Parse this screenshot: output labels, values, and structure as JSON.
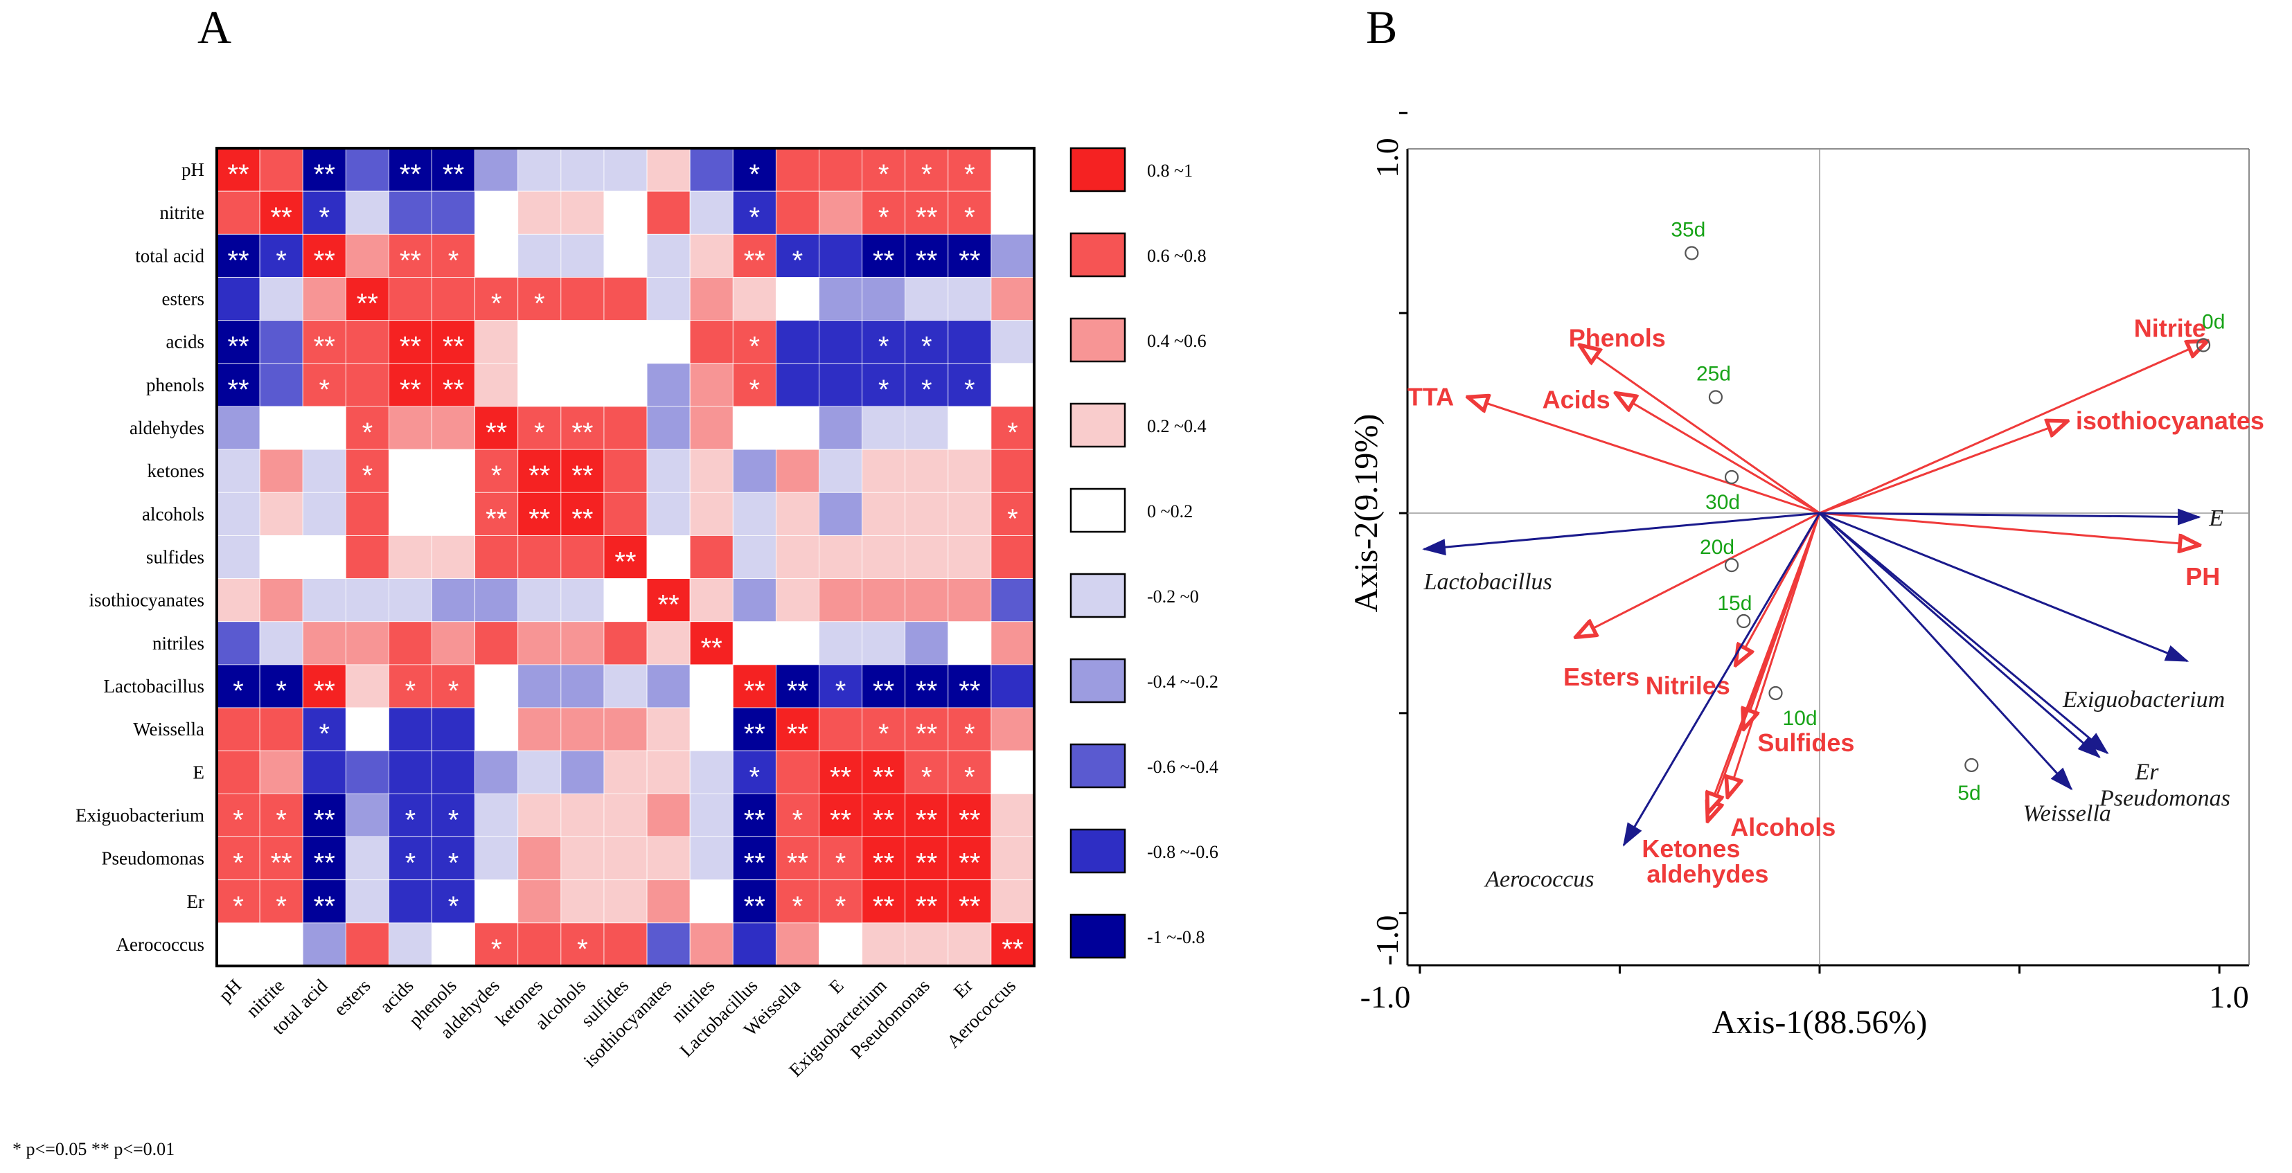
{
  "panels": {
    "a": "A",
    "b": "B"
  },
  "significance_note": "* p<=0.05   ** p<=0.01",
  "chart_data": [
    {
      "type": "heatmap",
      "title": "A",
      "rows": [
        "pH",
        "nitrite",
        "total acid",
        "esters",
        "acids",
        "phenols",
        "aldehydes",
        "ketones",
        "alcohols",
        "sulfides",
        "isothiocyanates",
        "nitriles",
        "Lactobacillus",
        "Weissella",
        "E",
        "Exiguobacterium",
        "Pseudomonas",
        "Er",
        "Aerococcus"
      ],
      "columns": [
        "pH",
        "nitrite",
        "total acid",
        "esters",
        "acids",
        "phenols",
        "aldehydes",
        "ketones",
        "alcohols",
        "sulfides",
        "isothiocyanates",
        "nitriles",
        "Lactobacillus",
        "Weissella",
        "E",
        "Exiguobacterium",
        "Pseudomonas",
        "Er",
        "Aerococcus"
      ],
      "values": [
        [
          0.9,
          0.7,
          -0.9,
          -0.5,
          -0.9,
          -0.9,
          -0.3,
          -0.1,
          -0.1,
          -0.1,
          0.3,
          -0.5,
          -0.9,
          0.7,
          0.7,
          0.7,
          0.7,
          0.7,
          0.1
        ],
        [
          0.7,
          0.9,
          -0.7,
          -0.1,
          -0.5,
          -0.5,
          0.1,
          0.3,
          0.3,
          0.1,
          0.7,
          -0.1,
          -0.7,
          0.7,
          0.5,
          0.7,
          0.7,
          0.7,
          0.1
        ],
        [
          -0.9,
          -0.7,
          0.9,
          0.5,
          0.7,
          0.7,
          0.1,
          -0.1,
          -0.1,
          0.1,
          -0.1,
          0.3,
          0.7,
          -0.7,
          -0.7,
          -0.9,
          -0.9,
          -0.9,
          -0.3
        ],
        [
          -0.7,
          -0.1,
          0.5,
          0.9,
          0.7,
          0.7,
          0.7,
          0.7,
          0.7,
          0.7,
          -0.1,
          0.5,
          0.3,
          0.1,
          -0.3,
          -0.3,
          -0.1,
          -0.1,
          0.5
        ],
        [
          -0.9,
          -0.5,
          0.7,
          0.7,
          0.9,
          0.9,
          0.3,
          0.1,
          0.1,
          0.1,
          0.1,
          0.7,
          0.7,
          -0.7,
          -0.7,
          -0.7,
          -0.7,
          -0.7,
          -0.1
        ],
        [
          -0.9,
          -0.5,
          0.7,
          0.7,
          0.9,
          0.9,
          0.3,
          0.1,
          0.1,
          0.1,
          -0.3,
          0.5,
          0.7,
          -0.7,
          -0.7,
          -0.7,
          -0.7,
          -0.7,
          0.1
        ],
        [
          -0.3,
          0.1,
          0.1,
          0.7,
          0.5,
          0.5,
          0.9,
          0.7,
          0.7,
          0.7,
          -0.3,
          0.5,
          0.1,
          0.1,
          -0.3,
          -0.1,
          -0.1,
          0.1,
          0.7
        ],
        [
          -0.1,
          0.5,
          -0.1,
          0.7,
          0.1,
          0.1,
          0.7,
          0.9,
          0.9,
          0.7,
          -0.1,
          0.3,
          -0.3,
          0.5,
          -0.1,
          0.3,
          0.3,
          0.3,
          0.7
        ],
        [
          -0.1,
          0.3,
          -0.1,
          0.7,
          0.1,
          0.1,
          0.7,
          0.9,
          0.9,
          0.7,
          -0.1,
          0.3,
          -0.1,
          0.3,
          -0.3,
          0.3,
          0.3,
          0.3,
          0.7
        ],
        [
          -0.1,
          0.1,
          0.1,
          0.7,
          0.3,
          0.3,
          0.7,
          0.7,
          0.7,
          0.9,
          0.1,
          0.7,
          -0.1,
          0.3,
          0.3,
          0.3,
          0.3,
          0.3,
          0.7
        ],
        [
          0.3,
          0.5,
          -0.1,
          -0.1,
          -0.1,
          -0.3,
          -0.3,
          -0.1,
          -0.1,
          0.1,
          0.9,
          0.3,
          -0.3,
          0.3,
          0.5,
          0.5,
          0.5,
          0.5,
          -0.5
        ],
        [
          -0.5,
          -0.1,
          0.5,
          0.5,
          0.7,
          0.5,
          0.7,
          0.5,
          0.5,
          0.7,
          0.3,
          0.9,
          0.1,
          0.1,
          -0.1,
          -0.1,
          -0.3,
          0.1,
          0.5
        ],
        [
          -0.9,
          -0.9,
          0.9,
          0.3,
          0.7,
          0.7,
          0.1,
          -0.3,
          -0.3,
          -0.1,
          -0.3,
          0.1,
          0.9,
          -0.9,
          -0.7,
          -0.9,
          -0.9,
          -0.9,
          -0.7
        ],
        [
          0.7,
          0.7,
          -0.7,
          0.1,
          -0.7,
          -0.7,
          0.1,
          0.5,
          0.5,
          0.5,
          0.3,
          0.1,
          -0.9,
          0.9,
          0.7,
          0.7,
          0.7,
          0.7,
          0.5
        ],
        [
          0.7,
          0.5,
          -0.7,
          -0.5,
          -0.7,
          -0.7,
          -0.3,
          -0.1,
          -0.3,
          0.3,
          0.3,
          -0.1,
          -0.7,
          0.7,
          0.9,
          0.9,
          0.7,
          0.7,
          0.1
        ],
        [
          0.7,
          0.7,
          -0.9,
          -0.3,
          -0.7,
          -0.7,
          -0.1,
          0.3,
          0.3,
          0.3,
          0.5,
          -0.1,
          -0.9,
          0.7,
          0.9,
          0.9,
          0.9,
          0.9,
          0.3
        ],
        [
          0.7,
          0.7,
          -0.9,
          -0.1,
          -0.7,
          -0.7,
          -0.1,
          0.5,
          0.3,
          0.3,
          0.3,
          -0.1,
          -0.9,
          0.7,
          0.7,
          0.9,
          0.9,
          0.9,
          0.3
        ],
        [
          0.7,
          0.7,
          -0.9,
          -0.1,
          -0.7,
          -0.7,
          0.1,
          0.5,
          0.3,
          0.3,
          0.5,
          0.1,
          -0.9,
          0.7,
          0.7,
          0.9,
          0.9,
          0.9,
          0.3
        ],
        [
          0.1,
          0.1,
          -0.3,
          0.7,
          -0.1,
          0.1,
          0.7,
          0.7,
          0.7,
          0.7,
          -0.5,
          0.5,
          -0.7,
          0.5,
          0.1,
          0.3,
          0.3,
          0.3,
          0.9
        ]
      ],
      "significance": [
        [
          "**",
          "",
          "**",
          "",
          "**",
          "**",
          "",
          "",
          "",
          "",
          "",
          "",
          "*",
          "",
          "",
          "*",
          "*",
          "*",
          ""
        ],
        [
          "",
          "**",
          "*",
          "",
          "",
          "",
          "",
          "",
          "",
          "",
          "",
          "",
          "*",
          "",
          "",
          "*",
          "**",
          "*",
          ""
        ],
        [
          "**",
          "*",
          "**",
          "",
          "**",
          "*",
          "",
          "",
          "",
          "",
          "",
          "",
          "**",
          "*",
          "",
          "**",
          "**",
          "**",
          ""
        ],
        [
          "",
          "",
          "",
          "**",
          "",
          "",
          "*",
          "*",
          "",
          "",
          "",
          "",
          "",
          "",
          "",
          "",
          "",
          "",
          ""
        ],
        [
          "**",
          "",
          "**",
          "",
          "**",
          "**",
          "",
          "",
          "",
          "",
          "",
          "",
          "*",
          "",
          "",
          "*",
          "*",
          "",
          ""
        ],
        [
          "**",
          "",
          "*",
          "",
          "**",
          "**",
          "",
          "",
          "",
          "",
          "",
          "",
          "*",
          "",
          "",
          "*",
          "*",
          "*",
          ""
        ],
        [
          "",
          "",
          "",
          "*",
          "",
          "",
          "**",
          "*",
          "**",
          "",
          "",
          "",
          "",
          "",
          "",
          "",
          "",
          "",
          "*"
        ],
        [
          "",
          "",
          "",
          "*",
          "",
          "",
          "*",
          "**",
          "**",
          "",
          "",
          "",
          "",
          "",
          "",
          "",
          "",
          "",
          ""
        ],
        [
          "",
          "",
          "",
          "",
          "",
          "",
          "**",
          "**",
          "**",
          "",
          "",
          "",
          "",
          "",
          "",
          "",
          "",
          "",
          "*"
        ],
        [
          "",
          "",
          "",
          "",
          "",
          "",
          "",
          "",
          "",
          "**",
          "",
          "",
          "",
          "",
          "",
          "",
          "",
          "",
          ""
        ],
        [
          "",
          "",
          "",
          "",
          "",
          "",
          "",
          "",
          "",
          "",
          "**",
          "",
          "",
          "",
          "",
          "",
          "",
          "",
          ""
        ],
        [
          "",
          "",
          "",
          "",
          "",
          "",
          "",
          "",
          "",
          "",
          "",
          "**",
          "",
          "",
          "",
          "",
          "",
          "",
          ""
        ],
        [
          "*",
          "*",
          "**",
          "",
          "*",
          "*",
          "",
          "",
          "",
          "",
          "",
          "",
          "**",
          "**",
          "*",
          "**",
          "**",
          "**",
          ""
        ],
        [
          "",
          "",
          "*",
          "",
          "",
          "",
          "",
          "",
          "",
          "",
          "",
          "",
          "**",
          "**",
          "",
          "*",
          "**",
          "*",
          ""
        ],
        [
          "",
          "",
          "",
          "",
          "",
          "",
          "",
          "",
          "",
          "",
          "",
          "",
          "*",
          "",
          "**",
          "**",
          "*",
          "*",
          ""
        ],
        [
          "*",
          "*",
          "**",
          "",
          "*",
          "*",
          "",
          "",
          "",
          "",
          "",
          "",
          "**",
          "*",
          "**",
          "**",
          "**",
          "**",
          ""
        ],
        [
          "*",
          "**",
          "**",
          "",
          "*",
          "*",
          "",
          "",
          "",
          "",
          "",
          "",
          "**",
          "**",
          "*",
          "**",
          "**",
          "**",
          ""
        ],
        [
          "*",
          "*",
          "**",
          "",
          "",
          "*",
          "",
          "",
          "",
          "",
          "",
          "",
          "**",
          "*",
          "*",
          "**",
          "**",
          "**",
          ""
        ],
        [
          "",
          "",
          "",
          "",
          "",
          "",
          "*",
          "",
          "*",
          "",
          "",
          "",
          "",
          "",
          "",
          "",
          "",
          "",
          "**"
        ]
      ],
      "legend": {
        "bins": [
          {
            "label": "0.8  ~1",
            "color": "#f52222"
          },
          {
            "label": "0.6  ~0.8",
            "color": "#f65454"
          },
          {
            "label": "0.4  ~0.6",
            "color": "#f79595"
          },
          {
            "label": "0.2  ~0.4",
            "color": "#f9cccc"
          },
          {
            "label": "0     ~0.2",
            "color": "#ffffff"
          },
          {
            "label": "-0.2 ~0",
            "color": "#d3d3f0"
          },
          {
            "label": "-0.4 ~-0.2",
            "color": "#9c9ce0"
          },
          {
            "label": "-0.6 ~-0.4",
            "color": "#5a5ad0"
          },
          {
            "label": "-0.8 ~-0.6",
            "color": "#2e2ec4"
          },
          {
            "label": "-1   ~-0.8",
            "color": "#000099"
          }
        ]
      }
    },
    {
      "type": "scatter",
      "title": "B",
      "subtype": "biplot",
      "xlabel": "Axis-1(88.56%)",
      "ylabel": "Axis-2(9.19%)",
      "xlim": [
        -1.0,
        1.0
      ],
      "ylim": [
        -1.0,
        1.0
      ],
      "xticks": [
        "-1.0",
        "1.0"
      ],
      "yticks": [
        "1.0",
        "-1.0"
      ],
      "environment_arrows": [
        {
          "label": "Nitrite",
          "x": 0.97,
          "y": 0.43
        },
        {
          "label": "isothiocyanates",
          "x": 0.62,
          "y": 0.23
        },
        {
          "label": "PH",
          "x": 0.95,
          "y": -0.08
        },
        {
          "label": "TTA",
          "x": -0.88,
          "y": 0.29
        },
        {
          "label": "Phenols",
          "x": -0.6,
          "y": 0.42
        },
        {
          "label": "Acids",
          "x": -0.51,
          "y": 0.3
        },
        {
          "label": "Esters",
          "x": -0.61,
          "y": -0.31
        },
        {
          "label": "Nitriles",
          "x": -0.21,
          "y": -0.38
        },
        {
          "label": "Sulfides",
          "x": -0.19,
          "y": -0.54
        },
        {
          "label": "Alcohols",
          "x": -0.23,
          "y": -0.71
        },
        {
          "label": "Ketones",
          "x": -0.28,
          "y": -0.77
        },
        {
          "label": "aldehydes",
          "x": -0.28,
          "y": -0.75
        }
      ],
      "species_arrows": [
        {
          "label": "E",
          "x": 0.95,
          "y": -0.01
        },
        {
          "label": "Lactobacillus",
          "x": -0.99,
          "y": -0.09
        },
        {
          "label": "Exiguobacterium",
          "x": 0.92,
          "y": -0.37
        },
        {
          "label": "Er",
          "x": 0.72,
          "y": -0.6
        },
        {
          "label": "Pseudomonas",
          "x": 0.7,
          "y": -0.61
        },
        {
          "label": "Weissella",
          "x": 0.63,
          "y": -0.69
        },
        {
          "label": "Aerococcus",
          "x": -0.49,
          "y": -0.83
        }
      ],
      "samples": [
        {
          "label": "0d",
          "x": 0.96,
          "y": 0.42
        },
        {
          "label": "35d",
          "x": -0.32,
          "y": 0.65
        },
        {
          "label": "25d",
          "x": -0.26,
          "y": 0.29
        },
        {
          "label": "30d",
          "x": -0.22,
          "y": 0.09
        },
        {
          "label": "20d",
          "x": -0.22,
          "y": -0.13
        },
        {
          "label": "15d",
          "x": -0.19,
          "y": -0.27
        },
        {
          "label": "10d",
          "x": -0.11,
          "y": -0.45
        },
        {
          "label": "5d",
          "x": 0.38,
          "y": -0.63
        }
      ]
    }
  ]
}
